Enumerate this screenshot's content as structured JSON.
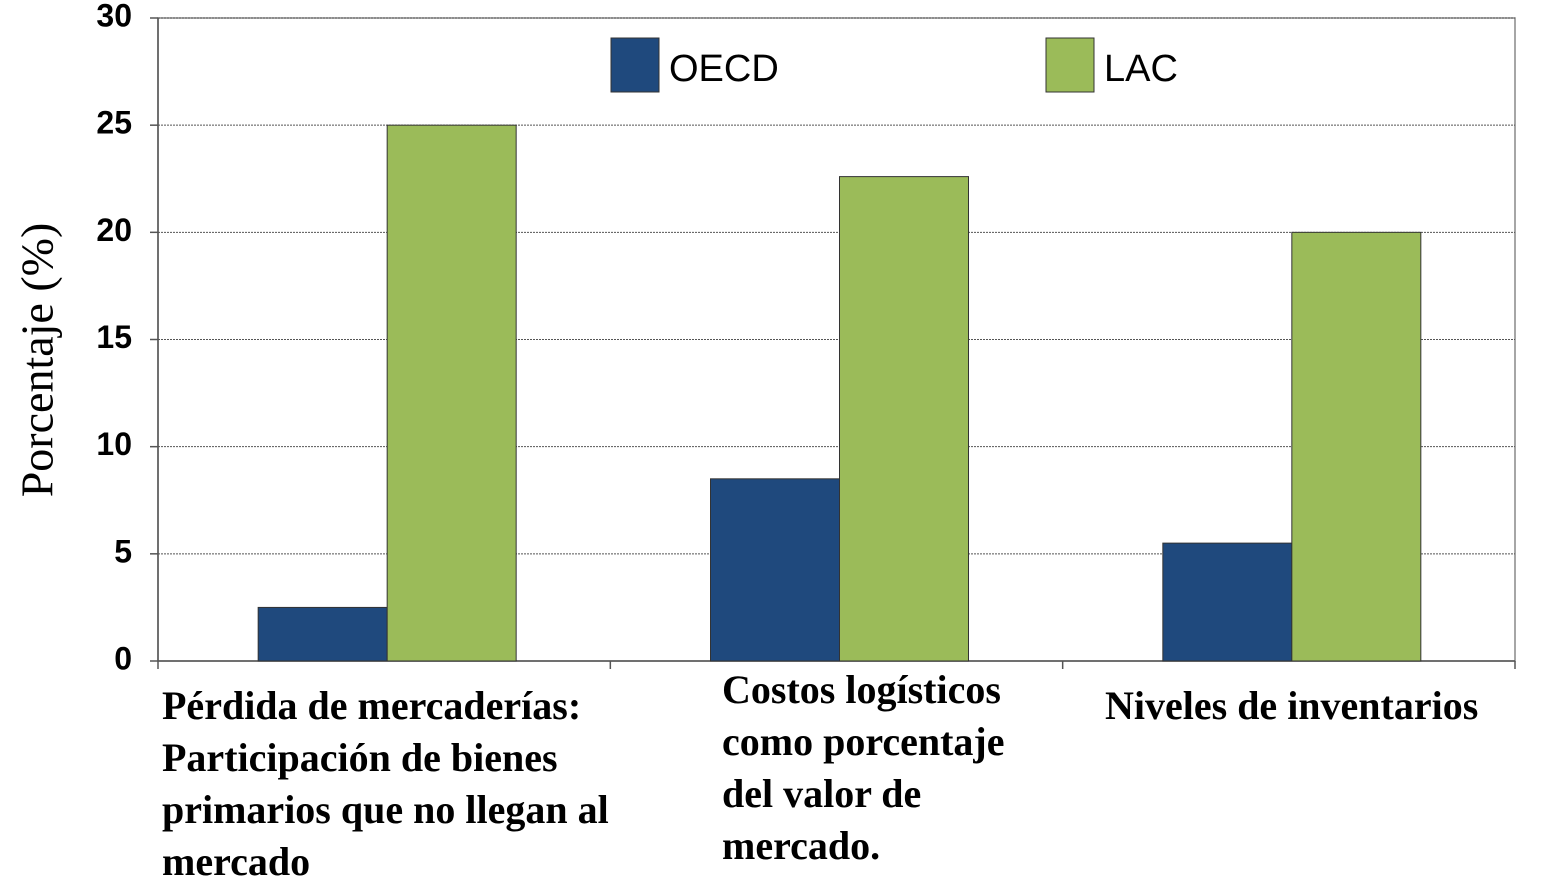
{
  "chart_data": {
    "type": "bar",
    "y_axis_label": "Porcentaje (%)",
    "categories": [
      "Pérdida de mercaderías: Participación de bienes primarios que no llegan al mercado",
      "Costos logísticos como porcentaje del valor de mercado.",
      "Niveles de inventarios"
    ],
    "series": [
      {
        "name": "OECD",
        "color": "#1f497d",
        "values": [
          2.5,
          8.5,
          5.5
        ]
      },
      {
        "name": "LAC",
        "color": "#9bbb59",
        "values": [
          25,
          22.6,
          20
        ]
      }
    ],
    "ylim": [
      0,
      30
    ],
    "yticks": [
      0,
      5,
      10,
      15,
      20,
      25,
      30
    ],
    "grid": true,
    "legend": "top"
  }
}
